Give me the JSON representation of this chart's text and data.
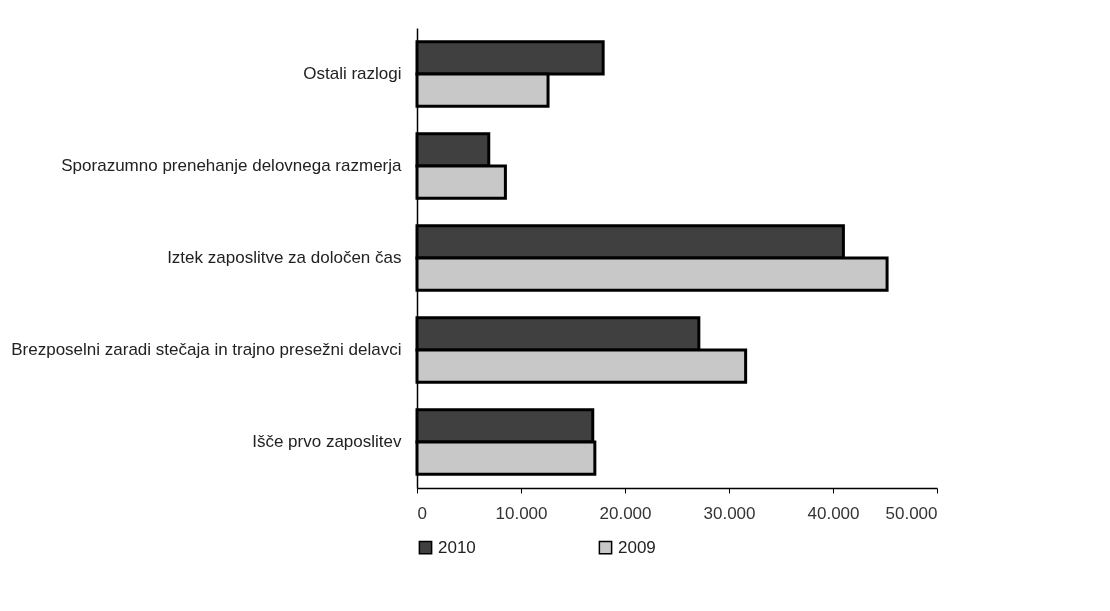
{
  "chart_data": {
    "type": "bar",
    "orientation": "horizontal",
    "categories": [
      "Ostali razlogi",
      "Sporazumno prenehanje delovnega razmerja",
      "Iztek zaposlitve za določen čas",
      "Brezposelni zaradi stečaja in trajno presežni delavci",
      "Išče prvo zaposlitev"
    ],
    "series": [
      {
        "name": "2010",
        "color": "#404040",
        "values": [
          17900,
          6900,
          41000,
          27100,
          16900
        ]
      },
      {
        "name": "2009",
        "color": "#c8c8c8",
        "values": [
          12600,
          8500,
          45200,
          31600,
          17100
        ]
      }
    ],
    "xlim": [
      0,
      50000
    ],
    "xticks": [
      0,
      {
        "value": 10000,
        "label": "10.000"
      },
      {
        "value": 20000,
        "label": "20.000"
      },
      {
        "value": 30000,
        "label": "30.000"
      },
      {
        "value": 40000,
        "label": "40.000"
      },
      {
        "value": 50000,
        "label": "50.000"
      }
    ],
    "grid": false,
    "legend": "bottom"
  }
}
